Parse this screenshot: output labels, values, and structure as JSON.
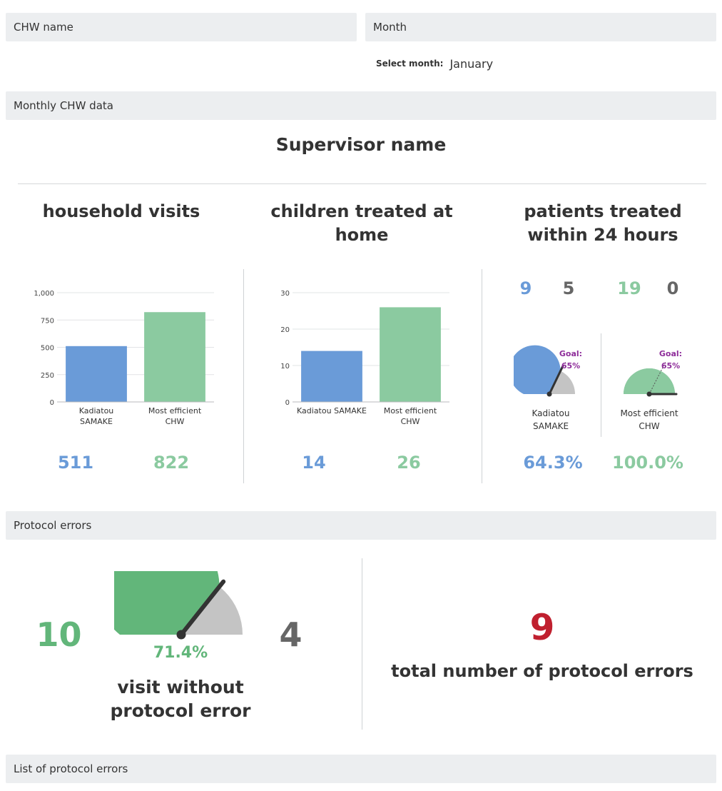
{
  "filters": {
    "chw_name_label": "CHW name",
    "month_label": "Month",
    "select_month_label": "Select month:",
    "select_month_value": "January"
  },
  "monthly": {
    "section_label": "Monthly CHW data",
    "supervisor_title": "Supervisor name",
    "household": {
      "title": "household visits",
      "chw_value": "511",
      "best_value": "822"
    },
    "children": {
      "title": "children treated at home",
      "chw_value": "14",
      "best_value": "26"
    },
    "patients": {
      "title": "patients treated within 24 hours",
      "chw_count_a": "9",
      "chw_count_b": "5",
      "best_count_a": "19",
      "best_count_b": "0",
      "goal_label_line1": "Goal:",
      "goal_label_line2": "65%",
      "chw_name_line1": "Kadiatou",
      "chw_name_line2": "SAMAKE",
      "best_name_line1": "Most efficient",
      "best_name_line2": "CHW",
      "chw_percent": "64.3%",
      "best_percent": "100.0%",
      "chw_fraction": 0.643,
      "best_fraction": 1.0,
      "goal_fraction": 0.65
    }
  },
  "protocol": {
    "section_label": "Protocol errors",
    "without_error_count": "10",
    "with_error_count": "4",
    "without_error_percent": "71.4%",
    "without_error_fraction": 0.714,
    "caption_line1": "visit without",
    "caption_line2": "protocol error",
    "total_errors": "9",
    "total_errors_label": "total number of protocol errors"
  },
  "list_section_label": "List of protocol errors",
  "colors": {
    "chw_blue": "#6a9bd8",
    "best_green": "#8bcaa0",
    "gauge_green": "#62b67a",
    "gauge_grey": "#c4c4c4",
    "needle": "#333333",
    "goal_purple": "#8e2d9a",
    "error_red": "#c0202f",
    "grey_number": "#666666"
  },
  "chart_data": [
    {
      "type": "bar",
      "title": "household visits",
      "categories": [
        "Kadiatou SAMAKE",
        "Most efficient CHW"
      ],
      "values": [
        511,
        822
      ],
      "ylim": [
        0,
        1000
      ],
      "yticks": [
        "0",
        "250",
        "500",
        "750",
        "1,000"
      ],
      "ytick_values": [
        0,
        250,
        500,
        750,
        1000
      ]
    },
    {
      "type": "bar",
      "title": "children treated at home",
      "categories": [
        "Kadiatou SAMAKE",
        "Most efficient CHW"
      ],
      "values": [
        14,
        26
      ],
      "ylim": [
        0,
        30
      ],
      "yticks": [
        "0",
        "10",
        "20",
        "30"
      ],
      "ytick_values": [
        0,
        10,
        20,
        30
      ]
    }
  ]
}
